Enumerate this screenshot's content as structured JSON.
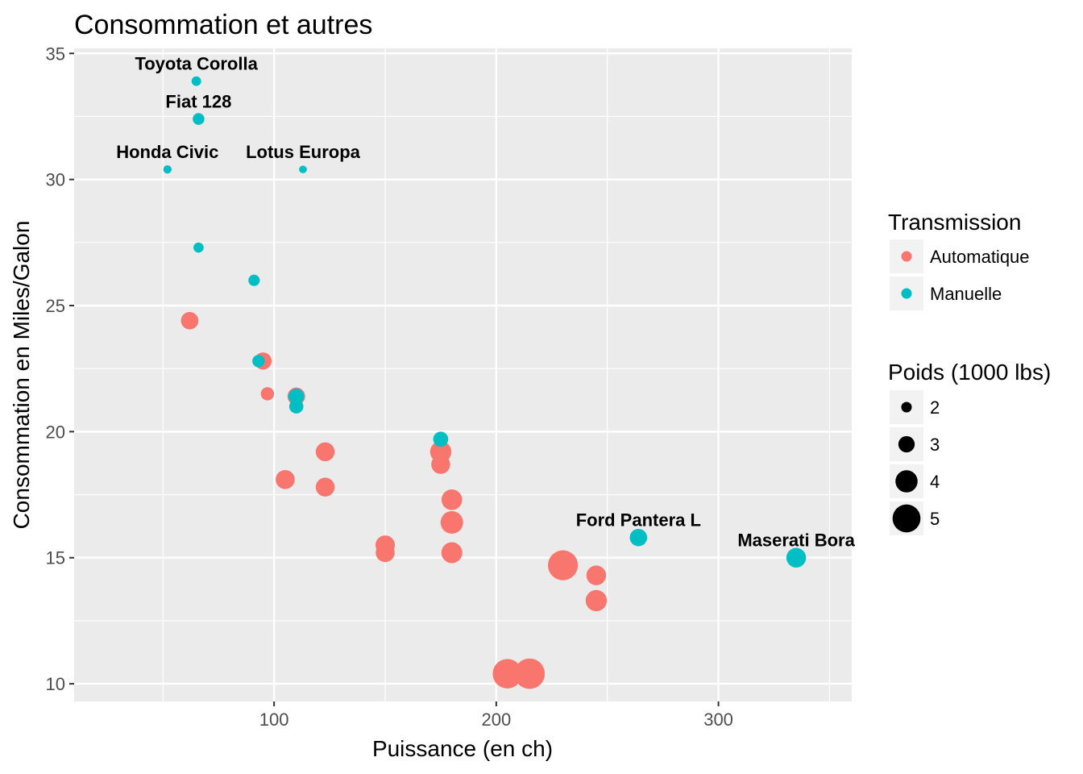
{
  "chart_data": {
    "type": "scatter",
    "title": "Consommation et autres",
    "xlabel": "Puissance (en ch)",
    "ylabel": "Consommation en Miles/Galon",
    "xlim": [
      10,
      360
    ],
    "ylim": [
      9.3,
      35.2
    ],
    "x_ticks": [
      100,
      200,
      300
    ],
    "y_ticks": [
      10,
      15,
      20,
      25,
      30,
      35
    ],
    "grid": true,
    "legend_position": "right",
    "colors": {
      "Automatique": "#F8766D",
      "Manuelle": "#00BFC4",
      "panel": "#EBEBEB",
      "grid": "#FFFFFF"
    },
    "color_legend": {
      "title": "Transmission",
      "entries": [
        "Automatique",
        "Manuelle"
      ]
    },
    "size_legend": {
      "title": "Poids (1000 lbs)",
      "entries": [
        2,
        3,
        4,
        5
      ]
    },
    "series": [
      {
        "name": "Automatique",
        "points": [
          {
            "x": 110,
            "y": 21.4,
            "wt": 3.215
          },
          {
            "x": 175,
            "y": 18.7,
            "wt": 3.44
          },
          {
            "x": 105,
            "y": 18.1,
            "wt": 3.46
          },
          {
            "x": 245,
            "y": 14.3,
            "wt": 3.57
          },
          {
            "x": 62,
            "y": 24.4,
            "wt": 3.19
          },
          {
            "x": 95,
            "y": 22.8,
            "wt": 3.15
          },
          {
            "x": 123,
            "y": 19.2,
            "wt": 3.44
          },
          {
            "x": 123,
            "y": 17.8,
            "wt": 3.44
          },
          {
            "x": 180,
            "y": 16.4,
            "wt": 4.07
          },
          {
            "x": 180,
            "y": 17.3,
            "wt": 3.73
          },
          {
            "x": 180,
            "y": 15.2,
            "wt": 3.78
          },
          {
            "x": 205,
            "y": 10.4,
            "wt": 5.25
          },
          {
            "x": 215,
            "y": 10.4,
            "wt": 5.424
          },
          {
            "x": 230,
            "y": 14.7,
            "wt": 5.345
          },
          {
            "x": 97,
            "y": 21.5,
            "wt": 2.465
          },
          {
            "x": 150,
            "y": 15.5,
            "wt": 3.52
          },
          {
            "x": 150,
            "y": 15.2,
            "wt": 3.435
          },
          {
            "x": 245,
            "y": 13.3,
            "wt": 3.84
          },
          {
            "x": 175,
            "y": 19.2,
            "wt": 3.845
          }
        ]
      },
      {
        "name": "Manuelle",
        "points": [
          {
            "x": 110,
            "y": 21.0,
            "wt": 2.62
          },
          {
            "x": 110,
            "y": 21.4,
            "wt": 2.875
          },
          {
            "x": 93,
            "y": 22.8,
            "wt": 2.32
          },
          {
            "x": 66,
            "y": 32.4,
            "wt": 2.2,
            "label": "Fiat 128"
          },
          {
            "x": 52,
            "y": 30.4,
            "wt": 1.615,
            "label": "Honda Civic"
          },
          {
            "x": 65,
            "y": 33.9,
            "wt": 1.835,
            "label": "Toyota Corolla"
          },
          {
            "x": 66,
            "y": 27.3,
            "wt": 1.935
          },
          {
            "x": 91,
            "y": 26.0,
            "wt": 2.14
          },
          {
            "x": 113,
            "y": 30.4,
            "wt": 1.513,
            "label": "Lotus Europa"
          },
          {
            "x": 264,
            "y": 15.8,
            "wt": 3.17,
            "label": "Ford Pantera L"
          },
          {
            "x": 175,
            "y": 19.7,
            "wt": 2.77
          },
          {
            "x": 335,
            "y": 15.0,
            "wt": 3.57,
            "label": "Maserati Bora"
          }
        ]
      }
    ]
  }
}
